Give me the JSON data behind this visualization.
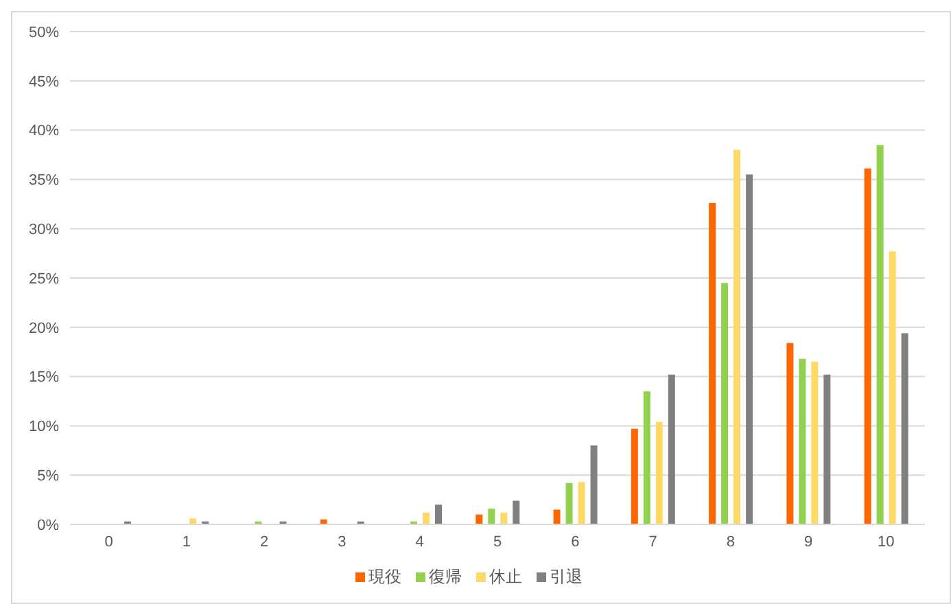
{
  "chart_data": {
    "type": "bar",
    "categories": [
      "0",
      "1",
      "2",
      "3",
      "4",
      "5",
      "6",
      "7",
      "8",
      "9",
      "10"
    ],
    "series": [
      {
        "name": "現役",
        "color": "#ff6600",
        "values": [
          0,
          0,
          0,
          0.5,
          0,
          1.0,
          1.5,
          9.7,
          32.6,
          18.4,
          36.1
        ]
      },
      {
        "name": "復帰",
        "color": "#92d050",
        "values": [
          0,
          0,
          0.3,
          0,
          0.3,
          1.6,
          4.2,
          13.5,
          24.5,
          16.8,
          38.5
        ]
      },
      {
        "name": "休止",
        "color": "#ffd966",
        "values": [
          0,
          0.6,
          0,
          0,
          1.2,
          1.2,
          4.3,
          10.4,
          38.0,
          16.5,
          27.7
        ]
      },
      {
        "name": "引退",
        "color": "#808080",
        "values": [
          0.3,
          0.3,
          0.3,
          0.3,
          2.0,
          2.4,
          8.0,
          15.2,
          35.5,
          15.2,
          19.4
        ]
      }
    ],
    "ylim": [
      0,
      50
    ],
    "yticks": [
      {
        "value": 0,
        "label": "0%"
      },
      {
        "value": 5,
        "label": "5%"
      },
      {
        "value": 10,
        "label": "10%"
      },
      {
        "value": 15,
        "label": "15%"
      },
      {
        "value": 20,
        "label": "20%"
      },
      {
        "value": 25,
        "label": "25%"
      },
      {
        "value": 30,
        "label": "30%"
      },
      {
        "value": 35,
        "label": "35%"
      },
      {
        "value": 40,
        "label": "40%"
      },
      {
        "value": 45,
        "label": "45%"
      },
      {
        "value": 50,
        "label": "50%"
      }
    ],
    "grid": "y",
    "legend": "bottom"
  }
}
